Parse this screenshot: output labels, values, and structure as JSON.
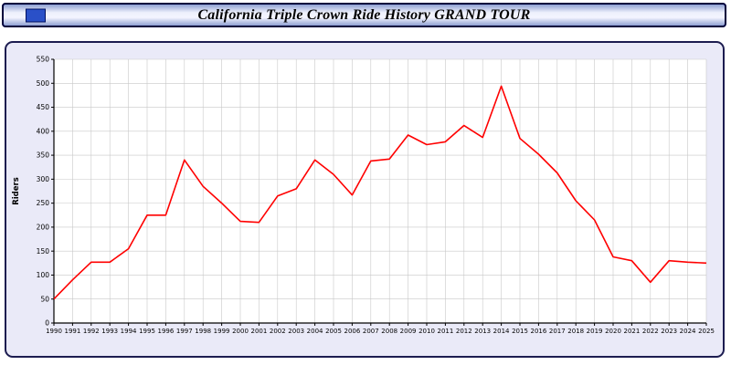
{
  "header": {
    "title": "California Triple Crown Ride History GRAND TOUR"
  },
  "colors": {
    "line": "#ff0000",
    "panel_bg": "#eaeaf8",
    "plot_bg": "#ffffff",
    "grid": "#c8c8c8",
    "titlebar_border": "#00003c",
    "window_icon": "#2a50c8"
  },
  "chart_data": {
    "type": "line",
    "title": "California Triple Crown Ride History GRAND TOUR",
    "xlabel": "",
    "ylabel": "Riders",
    "ylim": [
      0,
      550
    ],
    "ytick_step": 50,
    "grid": true,
    "legend": "none",
    "x": [
      1990,
      1991,
      1992,
      1993,
      1994,
      1995,
      1996,
      1997,
      1998,
      1999,
      2000,
      2001,
      2002,
      2003,
      2004,
      2005,
      2006,
      2007,
      2008,
      2009,
      2010,
      2011,
      2012,
      2013,
      2014,
      2015,
      2016,
      2017,
      2018,
      2019,
      2020,
      2021,
      2022,
      2023,
      2024,
      2025
    ],
    "series": [
      {
        "name": "Riders",
        "color": "#ff0000",
        "values": [
          50,
          90,
          127,
          127,
          155,
          225,
          225,
          340,
          285,
          250,
          212,
          210,
          265,
          280,
          340,
          310,
          267,
          338,
          342,
          392,
          372,
          378,
          412,
          387,
          494,
          385,
          352,
          313,
          255,
          215,
          138,
          130,
          85,
          130,
          127,
          125
        ]
      }
    ]
  }
}
